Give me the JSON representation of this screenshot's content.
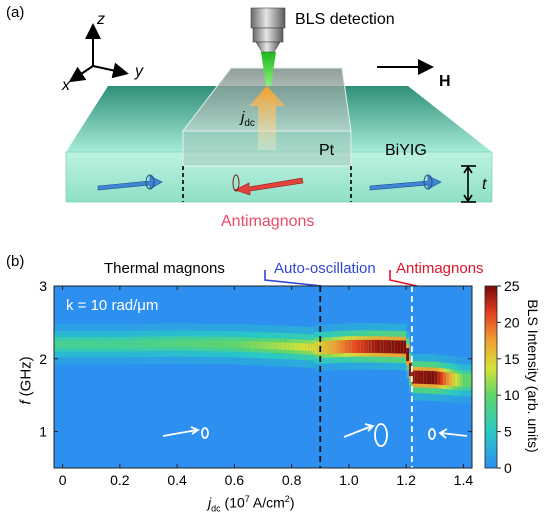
{
  "panel_a": {
    "label": "(a)",
    "axis_z": "z",
    "axis_x": "x",
    "axis_y": "y",
    "bls_label": "BLS detection",
    "field_label": "H",
    "current_label_main": "j",
    "current_label_sub": "dc",
    "pt_label": "Pt",
    "biyig_label": "BiYIG",
    "thickness_label": "t",
    "antimagnons_label": "Antimagnons",
    "colors": {
      "slab": "#7fd9bd",
      "slab_dark": "#4fb89a",
      "arrow_blue": "#3f86d6",
      "arrow_red": "#e2423a",
      "antimagnon_text": "#e84a66",
      "beam": "#27d12a"
    }
  },
  "panel_b": {
    "label": "(b)",
    "region_thermal": "Thermal magnons",
    "region_auto": "Auto-oscillation",
    "region_anti": "Antimagnons",
    "k_annotation": "k = 10 rad/μm",
    "colorbar_title": "BLS Intensity (arb. units)",
    "colors": {
      "auto": "#2f46d6",
      "anti": "#e0142a",
      "background": "#2d8ff0"
    }
  },
  "chart_data": {
    "type": "heatmap",
    "xlabel": "j_dc (10^7 A/cm^2)",
    "ylabel": "f (GHz)",
    "xlim": [
      -0.03,
      1.43
    ],
    "ylim": [
      0.5,
      3.0
    ],
    "x_ticks": [
      "0",
      "0.2",
      "0.4",
      "0.6",
      "0.8",
      "1.0",
      "1.2",
      "1.4"
    ],
    "y_ticks": [
      "1",
      "2",
      "3"
    ],
    "colorbar": {
      "range": [
        0,
        25
      ],
      "ticks": [
        "0",
        "5",
        "10",
        "15",
        "20",
        "25"
      ]
    },
    "thresholds": [
      0.9,
      1.22
    ],
    "peak_frequency_GHz": {
      "x": [
        0.0,
        0.2,
        0.4,
        0.6,
        0.8,
        0.9,
        1.0,
        1.1,
        1.2,
        1.22,
        1.3,
        1.4
      ],
      "f": [
        2.2,
        2.2,
        2.21,
        2.2,
        2.17,
        2.15,
        2.17,
        2.17,
        2.16,
        1.75,
        1.74,
        1.7
      ]
    },
    "peak_intensity": {
      "x": [
        0.0,
        0.2,
        0.4,
        0.6,
        0.8,
        0.9,
        1.0,
        1.1,
        1.2,
        1.22,
        1.3,
        1.4
      ],
      "v": [
        8,
        8,
        9,
        10,
        13,
        15,
        20,
        24,
        25,
        24,
        25,
        10
      ]
    }
  }
}
